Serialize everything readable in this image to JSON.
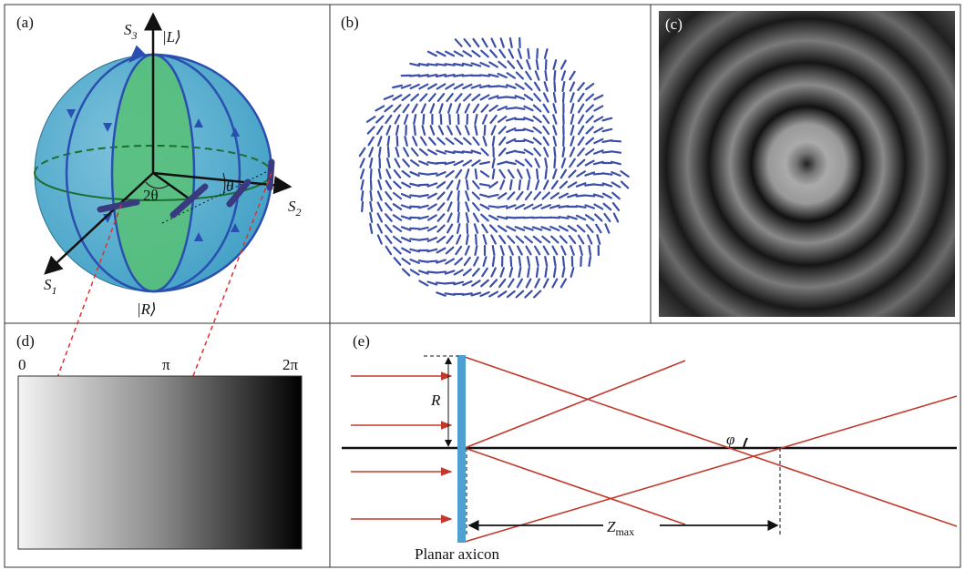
{
  "panel_a": {
    "label": "(a)",
    "s3": {
      "symbol": "S",
      "subscript": "3"
    },
    "s2": {
      "symbol": "S",
      "subscript": "2"
    },
    "s1": {
      "symbol": "S",
      "subscript": "1"
    },
    "ket_l": "|L⟩",
    "ket_r": "|R⟩",
    "two_theta": "2θ",
    "theta": "θ"
  },
  "panel_b": {
    "label": "(b)"
  },
  "panel_c": {
    "label": "(c)"
  },
  "panel_d": {
    "label": "(d)",
    "start": "0",
    "middle": "π",
    "end": "2π"
  },
  "panel_e": {
    "label": "(e)",
    "radius": "R",
    "angle": "φ",
    "distance": {
      "symbol": "Z",
      "subscript": "max"
    },
    "caption": "Planar axicon"
  }
}
